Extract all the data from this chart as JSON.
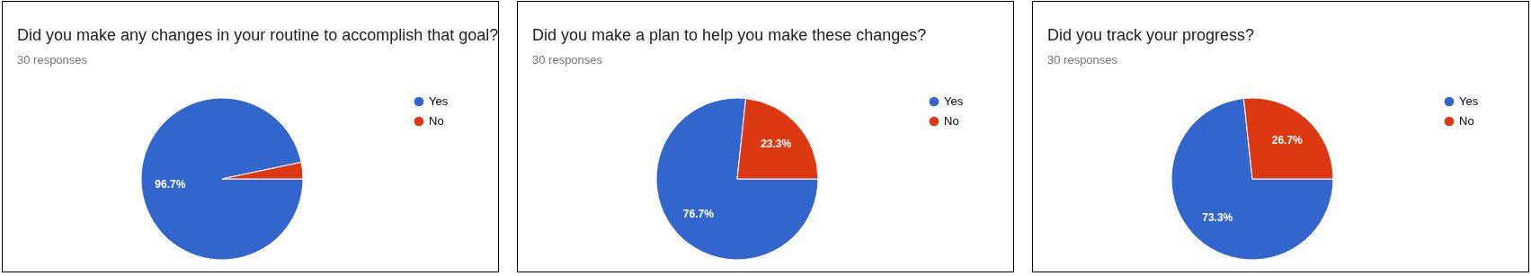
{
  "chart_data": [
    {
      "type": "pie",
      "title": "Did you make any changes in your routine to accomplish that goal?",
      "subtitle": "30 responses",
      "categories": [
        "Yes",
        "No"
      ],
      "values": [
        96.7,
        3.3
      ],
      "colors": [
        "#3366cc",
        "#dc3912"
      ],
      "value_labels": [
        "96.7%",
        null
      ],
      "legend": "top right"
    },
    {
      "type": "pie",
      "title": "Did you make a plan to help you make these changes?",
      "subtitle": "30 responses",
      "categories": [
        "Yes",
        "No"
      ],
      "values": [
        76.7,
        23.3
      ],
      "colors": [
        "#3366cc",
        "#dc3912"
      ],
      "value_labels": [
        "76.7%",
        "23.3%"
      ],
      "legend": "top right"
    },
    {
      "type": "pie",
      "title": "Did you track your progress?",
      "subtitle": "30 responses",
      "categories": [
        "Yes",
        "No"
      ],
      "values": [
        73.3,
        26.7
      ],
      "colors": [
        "#3366cc",
        "#dc3912"
      ],
      "value_labels": [
        "73.3%",
        "26.7%"
      ],
      "legend": "top right"
    }
  ]
}
